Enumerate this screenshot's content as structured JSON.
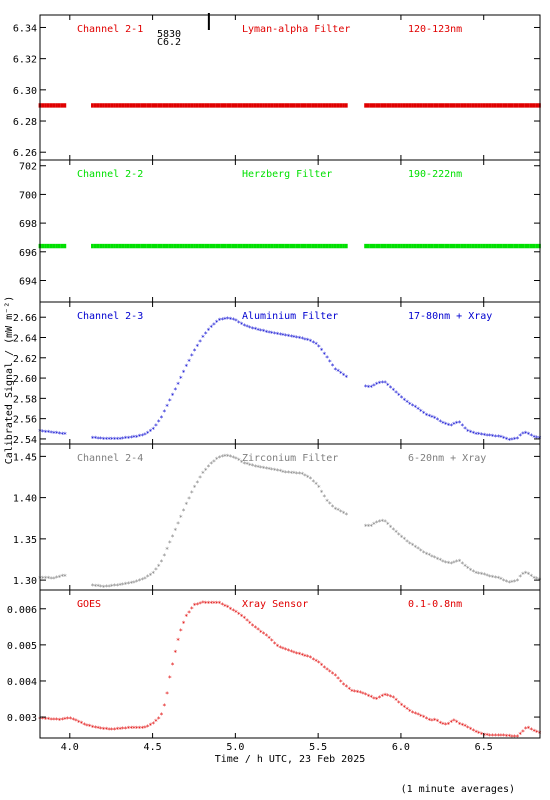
{
  "chart_data": {
    "type": "scatter",
    "xlabel": "Time / h UTC, 23 Feb 2025",
    "ylabel": "Calibrated Signal / (mW m⁻²)",
    "footnote": "(1 minute averages)",
    "xlim": [
      3.82,
      6.84
    ],
    "xticks": [
      4.0,
      4.5,
      5.0,
      5.5,
      6.0,
      6.5
    ],
    "xtick_labels": [
      "4.0",
      "4.5",
      "5.0",
      "5.5",
      "6.0",
      "6.5"
    ],
    "panels": [
      {
        "channel": "Channel 2-1",
        "filter": "Lyman-alpha Filter",
        "band": "120-123nm",
        "color": "#e00000",
        "ylim": [
          6.255,
          6.348
        ],
        "yticks": [
          6.26,
          6.28,
          6.3,
          6.32,
          6.34
        ],
        "ytick_labels": [
          "6.26",
          "6.28",
          "6.30",
          "6.32",
          "6.34"
        ],
        "marker_annotation": {
          "x": 4.84,
          "line1": "5830",
          "line2": "C6.2"
        },
        "gaps": [
          [
            3.97,
            4.13
          ],
          [
            5.67,
            5.77
          ]
        ],
        "series": [
          {
            "x": [
              3.82,
              6.84
            ],
            "y": [
              6.29,
              6.29
            ]
          }
        ]
      },
      {
        "channel": "Channel 2-2",
        "filter": "Herzberg Filter",
        "band": "190-222nm",
        "color": "#00e000",
        "ylim": [
          692.5,
          702.4
        ],
        "yticks": [
          694,
          696,
          698,
          700,
          702
        ],
        "ytick_labels": [
          "694",
          "696",
          "698",
          "700",
          "702"
        ],
        "gaps": [
          [
            3.97,
            4.13
          ],
          [
            5.67,
            5.77
          ]
        ],
        "series": [
          {
            "x": [
              3.82,
              6.84
            ],
            "y": [
              696.4,
              696.4
            ]
          }
        ]
      },
      {
        "channel": "Channel 2-3",
        "filter": "Aluminium Filter",
        "band": "17-80nm + Xray",
        "color": "#0000d0",
        "ylim": [
          2.535,
          2.675
        ],
        "yticks": [
          2.54,
          2.56,
          2.58,
          2.6,
          2.62,
          2.64,
          2.66
        ],
        "ytick_labels": [
          "2.54",
          "2.56",
          "2.58",
          "2.60",
          "2.62",
          "2.64",
          "2.66"
        ],
        "gaps": [
          [
            3.97,
            4.13
          ],
          [
            5.67,
            5.77
          ]
        ],
        "series": [
          {
            "x": [
              3.82,
              3.85,
              3.9,
              3.95,
              3.97,
              4.13,
              4.2,
              4.3,
              4.4,
              4.45,
              4.5,
              4.55,
              4.6,
              4.65,
              4.7,
              4.75,
              4.8,
              4.85,
              4.9,
              4.95,
              5.0,
              5.05,
              5.1,
              5.2,
              5.3,
              5.4,
              5.45,
              5.5,
              5.55,
              5.6,
              5.67,
              5.77,
              5.82,
              5.86,
              5.9,
              5.95,
              6.0,
              6.05,
              6.1,
              6.15,
              6.2,
              6.25,
              6.3,
              6.35,
              6.4,
              6.45,
              6.5,
              6.55,
              6.6,
              6.65,
              6.7,
              6.73,
              6.76,
              6.8,
              6.84
            ],
            "y": [
              2.549,
              2.548,
              2.547,
              2.546,
              2.546,
              2.542,
              2.541,
              2.541,
              2.543,
              2.545,
              2.55,
              2.561,
              2.578,
              2.594,
              2.612,
              2.627,
              2.641,
              2.651,
              2.658,
              2.66,
              2.658,
              2.653,
              2.65,
              2.646,
              2.643,
              2.64,
              2.638,
              2.633,
              2.622,
              2.61,
              2.602,
              2.593,
              2.592,
              2.596,
              2.597,
              2.59,
              2.582,
              2.576,
              2.571,
              2.565,
              2.562,
              2.557,
              2.554,
              2.558,
              2.549,
              2.546,
              2.545,
              2.544,
              2.543,
              2.54,
              2.541,
              2.546,
              2.547,
              2.543,
              2.542
            ]
          }
        ]
      },
      {
        "channel": "Channel 2-4",
        "filter": "Zirconium Filter",
        "band": "6-20nm + Xray",
        "color": "#7f7f7f",
        "ylim": [
          1.288,
          1.465
        ],
        "yticks": [
          1.3,
          1.35,
          1.4,
          1.45
        ],
        "ytick_labels": [
          "1.30",
          "1.35",
          "1.40",
          "1.45"
        ],
        "gaps": [
          [
            3.97,
            4.13
          ],
          [
            5.67,
            5.77
          ]
        ],
        "series": [
          {
            "x": [
              3.82,
              3.85,
              3.9,
              3.95,
              3.97,
              4.13,
              4.2,
              4.3,
              4.4,
              4.45,
              4.5,
              4.55,
              4.6,
              4.65,
              4.7,
              4.75,
              4.8,
              4.85,
              4.9,
              4.95,
              5.0,
              5.05,
              5.1,
              5.2,
              5.3,
              5.4,
              5.45,
              5.5,
              5.55,
              5.6,
              5.67,
              5.77,
              5.82,
              5.86,
              5.9,
              5.95,
              6.0,
              6.05,
              6.1,
              6.15,
              6.2,
              6.25,
              6.3,
              6.35,
              6.4,
              6.45,
              6.5,
              6.55,
              6.6,
              6.65,
              6.7,
              6.73,
              6.76,
              6.8,
              6.84
            ],
            "y": [
              1.304,
              1.304,
              1.303,
              1.306,
              1.306,
              1.295,
              1.293,
              1.295,
              1.299,
              1.303,
              1.309,
              1.322,
              1.345,
              1.368,
              1.392,
              1.413,
              1.43,
              1.442,
              1.45,
              1.452,
              1.449,
              1.443,
              1.44,
              1.436,
              1.432,
              1.43,
              1.425,
              1.415,
              1.398,
              1.388,
              1.381,
              1.367,
              1.367,
              1.372,
              1.373,
              1.363,
              1.354,
              1.346,
              1.34,
              1.333,
              1.329,
              1.324,
              1.321,
              1.325,
              1.316,
              1.31,
              1.308,
              1.305,
              1.303,
              1.298,
              1.3,
              1.308,
              1.31,
              1.304,
              1.302
            ]
          }
        ]
      },
      {
        "channel": "GOES",
        "filter": "Xray Sensor",
        "band": "0.1-0.8nm",
        "color": "#e00000",
        "ylim": [
          0.00242,
          0.00652
        ],
        "yticks": [
          0.003,
          0.004,
          0.005,
          0.006
        ],
        "ytick_labels": [
          "0.003",
          "0.004",
          "0.005",
          "0.006"
        ],
        "gaps": [],
        "series": [
          {
            "x": [
              3.82,
              3.85,
              3.9,
              3.95,
              4.0,
              4.05,
              4.1,
              4.15,
              4.2,
              4.25,
              4.3,
              4.35,
              4.4,
              4.45,
              4.5,
              4.55,
              4.58,
              4.6,
              4.63,
              4.66,
              4.7,
              4.75,
              4.8,
              4.85,
              4.9,
              4.95,
              5.0,
              5.05,
              5.1,
              5.15,
              5.2,
              5.25,
              5.3,
              5.4,
              5.45,
              5.5,
              5.55,
              5.6,
              5.65,
              5.7,
              5.75,
              5.8,
              5.85,
              5.9,
              5.95,
              6.0,
              6.05,
              6.1,
              6.15,
              6.18,
              6.21,
              6.24,
              6.28,
              6.32,
              6.36,
              6.4,
              6.45,
              6.5,
              6.55,
              6.6,
              6.65,
              6.7,
              6.73,
              6.76,
              6.8,
              6.84
            ],
            "y": [
              0.00299,
              0.00298,
              0.00296,
              0.00295,
              0.003,
              0.0029,
              0.0028,
              0.00274,
              0.0027,
              0.00268,
              0.0027,
              0.00272,
              0.00272,
              0.00273,
              0.00283,
              0.00305,
              0.0035,
              0.00405,
              0.0047,
              0.0053,
              0.0058,
              0.00612,
              0.0062,
              0.00618,
              0.00619,
              0.00608,
              0.00595,
              0.00578,
              0.00558,
              0.0054,
              0.00524,
              0.005,
              0.0049,
              0.00475,
              0.00468,
              0.00455,
              0.00435,
              0.0042,
              0.00395,
              0.00375,
              0.00372,
              0.00362,
              0.00352,
              0.00365,
              0.00358,
              0.00338,
              0.0032,
              0.0031,
              0.003,
              0.00292,
              0.00295,
              0.00285,
              0.00282,
              0.00293,
              0.00282,
              0.00275,
              0.00262,
              0.00253,
              0.00252,
              0.00252,
              0.0025,
              0.00248,
              0.0026,
              0.00275,
              0.00265,
              0.00258
            ]
          }
        ]
      }
    ]
  }
}
